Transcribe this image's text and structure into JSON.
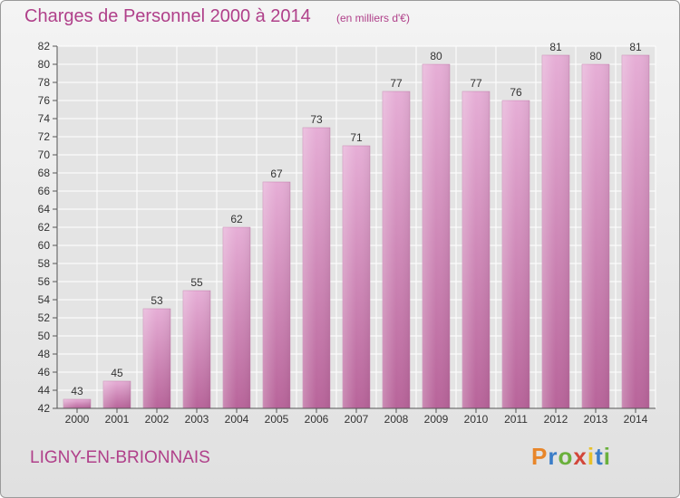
{
  "header": {
    "title": "Charges de Personnel 2000 à 2014",
    "subtitle": "(en milliers d'€)"
  },
  "footer": {
    "place": "LIGNY-EN-BRIONNAIS",
    "logo": "Proxiti"
  },
  "colors": {
    "title": "#b0408a",
    "bar_top": "#e6aed6",
    "bar_bottom": "#b8649a",
    "grid": "#ffffff"
  },
  "chart_data": {
    "type": "bar",
    "categories": [
      "2000",
      "2001",
      "2002",
      "2003",
      "2004",
      "2005",
      "2006",
      "2007",
      "2008",
      "2009",
      "2010",
      "2011",
      "2012",
      "2013",
      "2014"
    ],
    "values": [
      43,
      45,
      53,
      55,
      62,
      67,
      73,
      71,
      77,
      80,
      77,
      76,
      81,
      80,
      81
    ],
    "ylim": [
      42,
      82
    ],
    "yticks": [
      42,
      44,
      46,
      48,
      50,
      52,
      54,
      56,
      58,
      60,
      62,
      64,
      66,
      68,
      70,
      72,
      74,
      76,
      78,
      80,
      82
    ],
    "grid": true,
    "data_labels": true
  }
}
